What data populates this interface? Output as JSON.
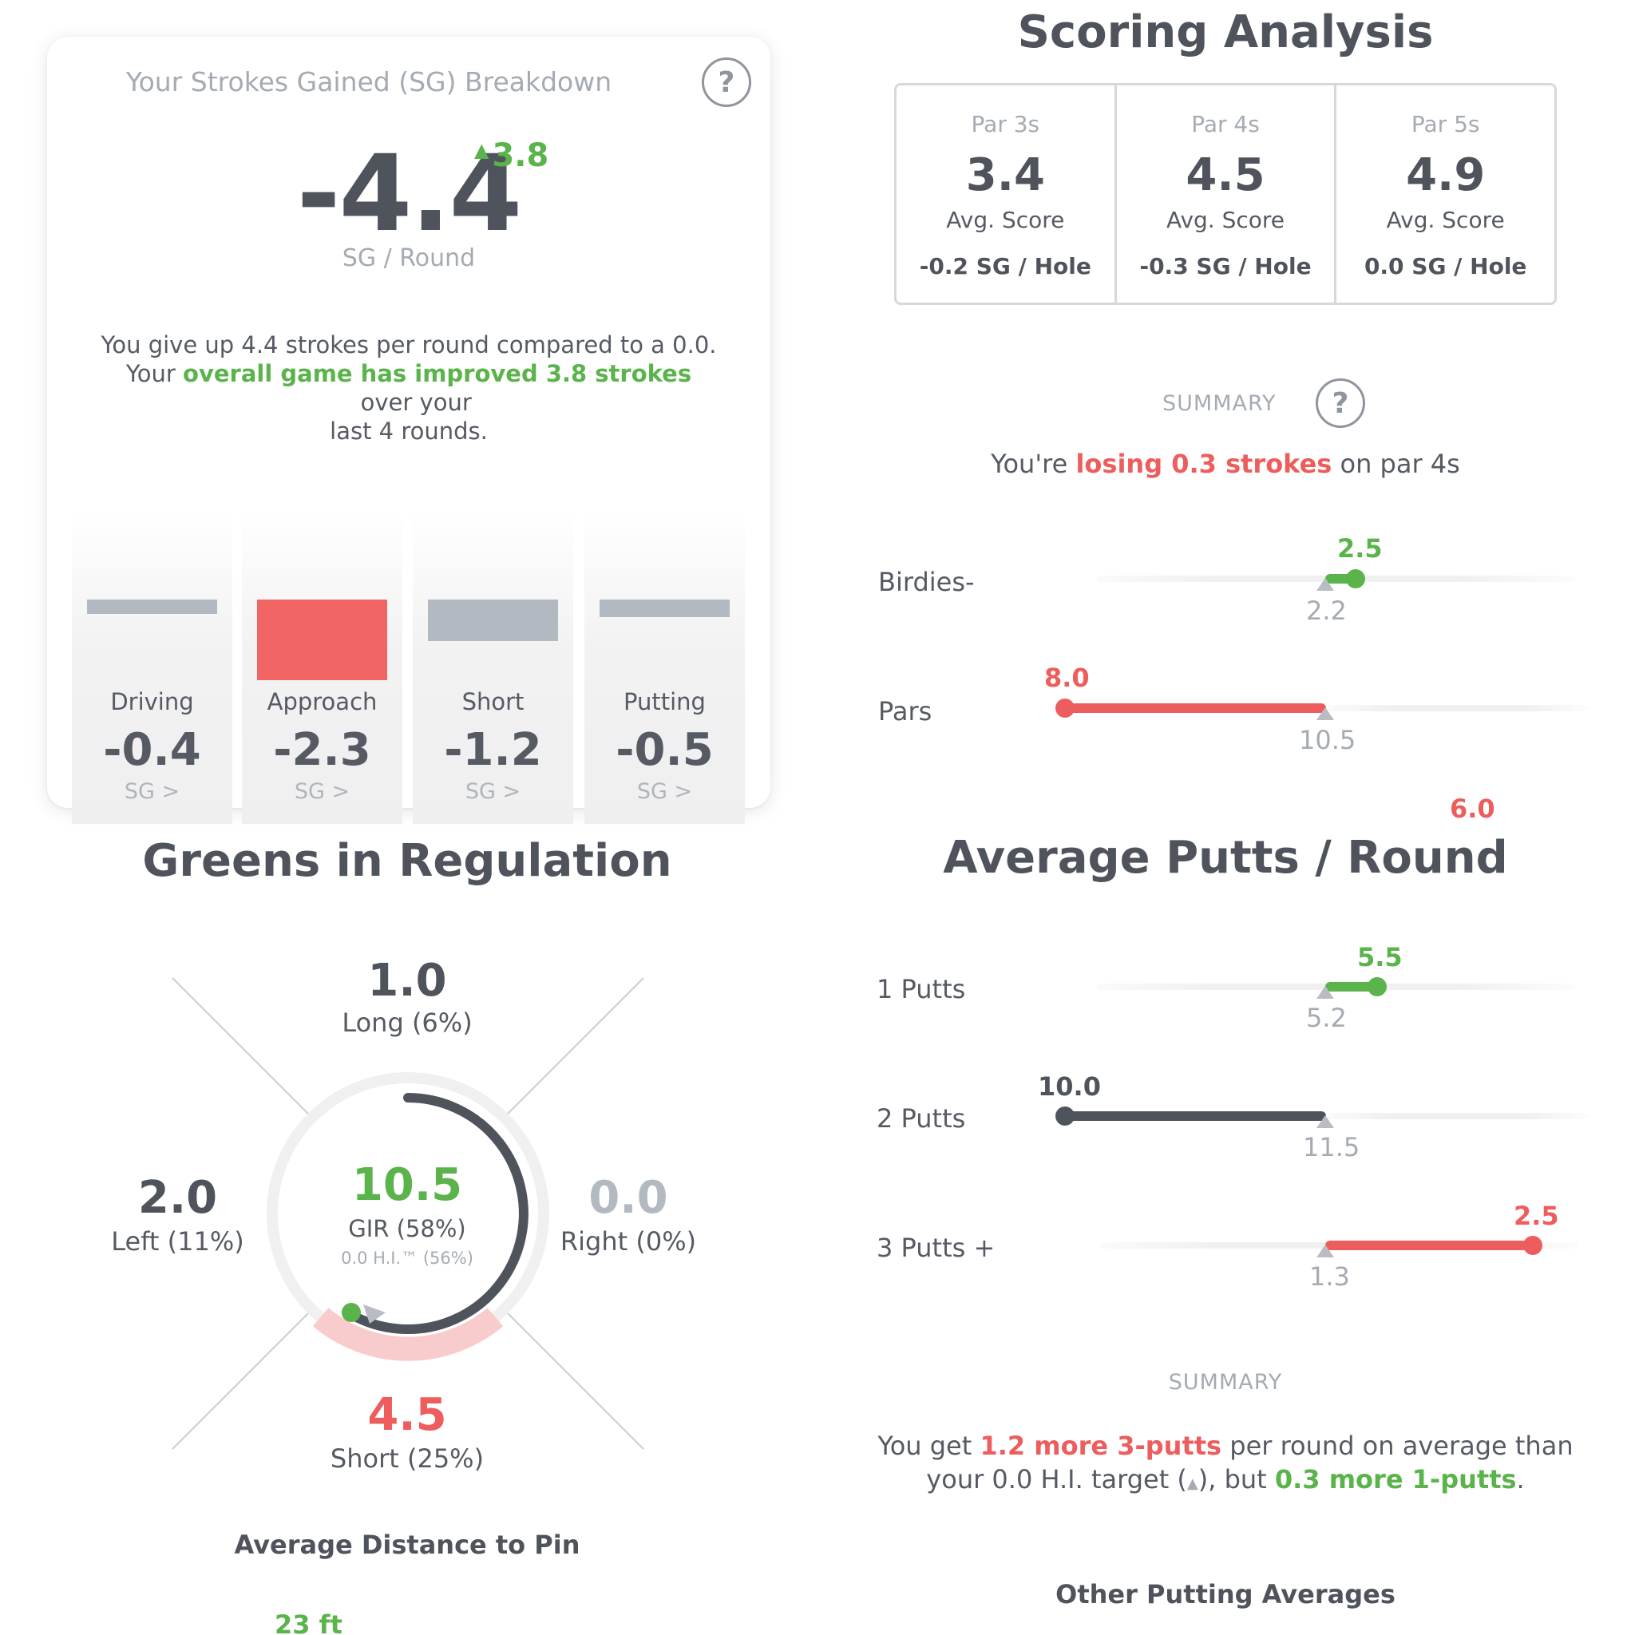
{
  "sg_card": {
    "title": "Your Strokes Gained (SG) Breakdown",
    "help_icon": "?",
    "value": "-4.4",
    "delta": "3.8",
    "unit": "SG / Round",
    "desc_line1": "You give up 4.4 strokes per round compared to a 0.0.",
    "desc_line2_pre": "Your ",
    "desc_line2_hl": "overall game has improved 3.8 strokes",
    "desc_line2_post": "  over your",
    "desc_line3": "last 4 rounds.",
    "categories": [
      {
        "label": "Driving",
        "value": "-0.4",
        "sg": "SG >"
      },
      {
        "label": "Approach",
        "value": "-2.3",
        "sg": "SG >"
      },
      {
        "label": "Short",
        "value": "-1.2",
        "sg": "SG >"
      },
      {
        "label": "Putting",
        "value": "-0.5",
        "sg": "SG >"
      }
    ],
    "colors": {
      "negative": "#ee5d5d",
      "neutral": "#b2b9c0",
      "positive": "#5ab34b"
    }
  },
  "scoring": {
    "title": "Scoring Analysis",
    "pars": [
      {
        "label": "Par 3s",
        "value": "3.4",
        "avg": "Avg. Score",
        "sg": "-0.2 SG / Hole"
      },
      {
        "label": "Par 4s",
        "value": "4.5",
        "avg": "Avg. Score",
        "sg": "-0.3 SG / Hole"
      },
      {
        "label": "Par 5s",
        "value": "4.9",
        "avg": "Avg. Score",
        "sg": "0.0 SG / Hole"
      }
    ],
    "summary_label": "SUMMARY",
    "help_icon": "?",
    "summary_pre": "You're ",
    "summary_hl": "losing 0.3 strokes",
    "summary_post": " on par 4s",
    "rows": [
      {
        "label": "Birdies-",
        "value": "2.5",
        "target": "2.2"
      },
      {
        "label": "Pars",
        "value": "8.0",
        "target": "10.5"
      }
    ],
    "partial_value": "6.0"
  },
  "gir": {
    "title": "Greens in Regulation",
    "long_value": "1.0",
    "long_label": "Long (6%)",
    "left_value": "2.0",
    "left_label": "Left (11%)",
    "right_value": "0.0",
    "right_label": "Right (0%)",
    "short_value": "4.5",
    "short_label": "Short (25%)",
    "center_value": "10.5",
    "center_label": "GIR (58%)",
    "center_sub": "0.0 H.I.™ (56%)",
    "gir_fraction": 0.58,
    "distance_title": "Average Distance to Pin",
    "distance_value": "23 ft"
  },
  "putts": {
    "title": "Average Putts / Round",
    "rows": [
      {
        "label": "1 Putts",
        "value": "5.5",
        "target": "5.2"
      },
      {
        "label": "2 Putts",
        "value": "10.0",
        "target": "11.5"
      },
      {
        "label": "3 Putts +",
        "value": "2.5",
        "target": "1.3"
      }
    ],
    "summary_label": "SUMMARY",
    "summary_pre": "You get ",
    "summary_hl1": "1.2 more 3-putts",
    "summary_mid": " per round on average than",
    "summary_line2_pre": "your 0.0 H.I. target (",
    "summary_line2_mid": "), but ",
    "summary_hl2": "0.3 more 1-putts",
    "summary_end": ".",
    "other_title": "Other Putting Averages"
  }
}
